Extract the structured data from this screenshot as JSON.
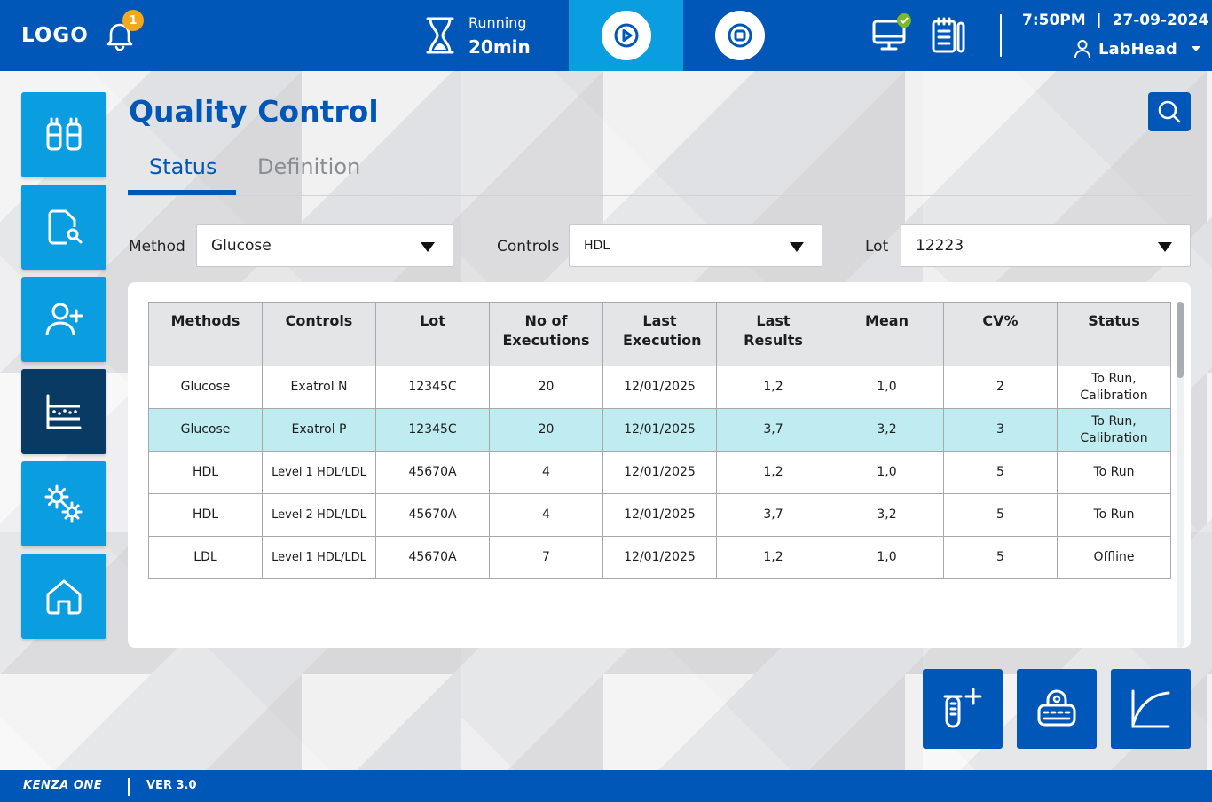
{
  "header": {
    "logo": "LOGO",
    "notification_count": "1",
    "run_status": "Running",
    "run_time": "20min",
    "time": "7:50PM",
    "date_sep": "|",
    "date": "27-09-2024",
    "user": "LabHead"
  },
  "sidebar": {
    "items": [
      {
        "icon": "sample-tubes-icon"
      },
      {
        "icon": "report-search-icon"
      },
      {
        "icon": "add-user-icon"
      },
      {
        "icon": "quality-chart-icon",
        "active": true
      },
      {
        "icon": "settings-gears-icon"
      },
      {
        "icon": "home-icon"
      }
    ]
  },
  "page": {
    "title": "Quality Control",
    "tabs": [
      {
        "label": "Status",
        "active": true
      },
      {
        "label": "Definition",
        "active": false
      }
    ]
  },
  "filters": {
    "method_label": "Method",
    "method_value": "Glucose",
    "controls_label": "Controls",
    "controls_value": "HDL",
    "lot_label": "Lot",
    "lot_value": "12223"
  },
  "table": {
    "headers": [
      "Methods",
      "Controls",
      "Lot",
      "No of Executions",
      "Last Execution",
      "Last Results",
      "Mean",
      "CV%",
      "Status"
    ],
    "rows": [
      [
        "Glucose",
        "Exatrol N",
        "12345C",
        "20",
        "12/01/2025",
        "1,2",
        "1,0",
        "2",
        "To Run, Calibration"
      ],
      [
        "Glucose",
        "Exatrol P",
        "12345C",
        "20",
        "12/01/2025",
        "3,7",
        "3,2",
        "3",
        "To Run, Calibration"
      ],
      [
        "HDL",
        "Level 1 HDL/LDL",
        "45670A",
        "4",
        "12/01/2025",
        "1,2",
        "1,0",
        "5",
        "To Run"
      ],
      [
        "HDL",
        "Level 2 HDL/LDL",
        "45670A",
        "4",
        "12/01/2025",
        "3,7",
        "3,2",
        "5",
        "To Run"
      ],
      [
        "LDL",
        "Level 1 HDL/LDL",
        "45670A",
        "7",
        "12/01/2025",
        "1,2",
        "1,0",
        "5",
        "Offline"
      ]
    ],
    "selected_row": 1
  },
  "footer": {
    "brand": "KENZA ONE",
    "version": "VER 3.0"
  },
  "colors": {
    "primary": "#0057b7",
    "accent": "#0a9de0",
    "active_nav": "#083a63",
    "selected_row": "#bfecf0",
    "badge": "#f3a81d",
    "ok_badge": "#7ab929"
  }
}
